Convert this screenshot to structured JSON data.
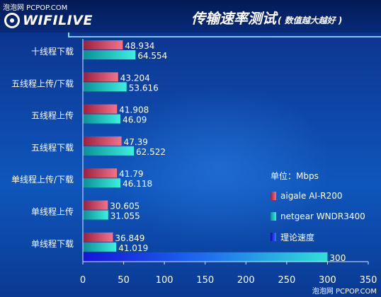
{
  "watermark_top": "泡泡网 PCPOP.COM",
  "watermark_bottom": "泡泡网 PCPOP.COM",
  "logo": "WIFILIVE",
  "title": "传输速率测试",
  "subtitle": "( 数值越大越好 )",
  "colors": {
    "aigale": "#e8506a",
    "netgear": "#25d4c6",
    "theory": "#1a3cf0"
  },
  "chart_data": {
    "type": "bar",
    "orientation": "horizontal",
    "categories": [
      "十线程下载",
      "五线程上传/下载",
      "五线程上传",
      "五线程下载",
      "单线程上传/下载",
      "单线程上传",
      "单线程下载"
    ],
    "series": [
      {
        "name": "aigale AI-R200",
        "values": [
          48.934,
          43.204,
          41.908,
          47.39,
          41.79,
          30.605,
          36.849
        ]
      },
      {
        "name": "netgear WNDR3400",
        "values": [
          64.554,
          53.616,
          46.09,
          62.522,
          46.118,
          31.055,
          41.019
        ]
      },
      {
        "name": "理论速度",
        "values": [
          null,
          null,
          null,
          null,
          null,
          null,
          300
        ]
      }
    ],
    "value_labels": [
      [
        "48.934",
        "43.204",
        "41.908",
        "47.39",
        "41.79",
        "30.605",
        "36.849"
      ],
      [
        "64.554",
        "53.616",
        "46.09",
        "62.522",
        "46.118",
        "31.055",
        "41.019"
      ],
      [
        "",
        "",
        "",
        "",
        "",
        "",
        "300"
      ]
    ],
    "xticks": [
      "0",
      "50",
      "100",
      "150",
      "200",
      "250",
      "300",
      "350"
    ],
    "xlim": [
      0,
      350
    ],
    "legend_unit": "单位：Mbps",
    "legend_placement": "right",
    "grid": false
  }
}
